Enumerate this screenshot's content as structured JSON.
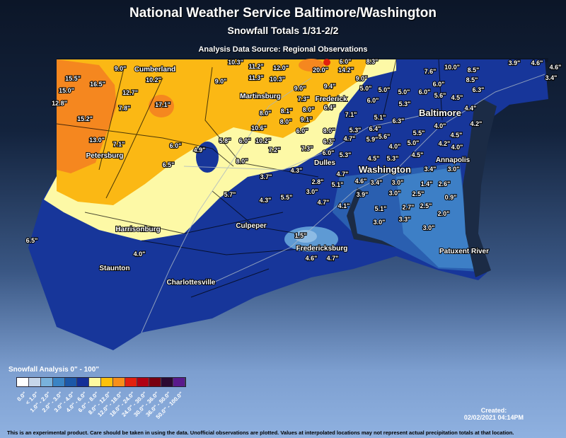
{
  "header": {
    "title": "National Weather Service Baltimore/Washington",
    "subtitle": "Snowfall Totals 1/31-2/2",
    "source": "Analysis Data Source: Regional Observations"
  },
  "colors": {
    "base_blue": "#17369a",
    "yellow": "#fdf9a6",
    "orange": "#fbb814",
    "deep_orange": "#f5871f",
    "light_blue": "#3d7fc6",
    "lightest_blue": "#8dbbe4",
    "water": "#1b2b45"
  },
  "cities": [
    "Cumberland",
    "Petersburg",
    "Martinsburg",
    "Frederick",
    "Baltimore",
    "Dulles",
    "Washington",
    "Annapolis",
    "Harrisonburg",
    "Culpeper",
    "Fredericksburg",
    "Patuxent River",
    "Staunton",
    "Charlottesville"
  ],
  "observations": [
    "9.0\"",
    "15.5\"",
    "16.5\"",
    "15.0\"",
    "12.8\"",
    "12.7\"",
    "10.2\"",
    "7.8\"",
    "17.1\"",
    "15.2\"",
    "13.0\"",
    "7.1\"",
    "6.0\"",
    "4.9\"",
    "5.8\"",
    "6.0\"",
    "10.2\"",
    "8.0\"",
    "6.5\"",
    "7.2\"",
    "10.6\"",
    "8.0\"",
    "3.7\"",
    "10.3\"",
    "11.2\"",
    "12.0\"",
    "11.3\"",
    "10.3\"",
    "9.0\"",
    "9.0\"",
    "7.3\"",
    "8.1\"",
    "8.0\"",
    "8.0\"",
    "9.1\"",
    "6.0\"",
    "8.0\"",
    "6.3\"",
    "7.3\"",
    "6.0\"",
    "4.3\"",
    "2.8\"",
    "20.0\"",
    "14.2\"",
    "6.0\"",
    "8.3\"",
    "9.0\"",
    "9.4\"",
    "5.0\"",
    "5.0\"",
    "5.0\"",
    "6.0\"",
    "7.6\"",
    "10.0\"",
    "8.5\"",
    "8.5\"",
    "6.0\"",
    "3.9\"",
    "4.6\"",
    "4.6\"",
    "3.4\"",
    "6.0\"",
    "6.4\"",
    "5.6\"",
    "4.5\"",
    "6.3\"",
    "5.3\"",
    "7.1\"",
    "5.1\"",
    "4.4\"",
    "6.3\"",
    "4.0\"",
    "4.2\"",
    "5.3\"",
    "6.4\"",
    "5.6\"",
    "5.5\"",
    "4.5\"",
    "4.7\"",
    "5.9\"",
    "5.0\"",
    "4.2\"",
    "4.0\"",
    "4.0\"",
    "5.3\"",
    "4.5\"",
    "5.3\"",
    "4.5\"",
    "3.4\"",
    "3.0\"",
    "4.7\"",
    "5.1\"",
    "4.6\"",
    "3.4\"",
    "3.0\"",
    "1.4\"",
    "2.6\"",
    "3.0\"",
    "3.9\"",
    "3.0\"",
    "2.5\"",
    "0.9\"",
    "5.5\"",
    "4.7\"",
    "4.1\"",
    "5.1\"",
    "2.7\"",
    "2.5\"",
    "2.0\"",
    "3.0\"",
    "3.3\"",
    "3.0\"",
    "1.5\"",
    "4.6\"",
    "4.7\"",
    "5.7\"",
    "4.3\"",
    "6.5\"",
    "4.0\""
  ],
  "legend": {
    "title": "Snowfall Analysis 0\" - 100\"",
    "bins": [
      {
        "label": "0.0\"",
        "color": "#ffffff"
      },
      {
        "label": "< 1.0\"",
        "color": "#c6d6ea"
      },
      {
        "label": "1.0\" - 2.0\"",
        "color": "#79b2dc"
      },
      {
        "label": "2.0\" - 3.0\"",
        "color": "#3a84c4"
      },
      {
        "label": "3.0\" - 4.0\"",
        "color": "#1c58a8"
      },
      {
        "label": "4.0\" - 6.0\"",
        "color": "#142f98"
      },
      {
        "label": "6.0\" - 8.0\"",
        "color": "#fefaa0"
      },
      {
        "label": "8.0\" - 12.0\"",
        "color": "#fcc10c"
      },
      {
        "label": "12.0\" - 18.0\"",
        "color": "#f78f1a"
      },
      {
        "label": "18.0\" - 24.0\"",
        "color": "#e2200e"
      },
      {
        "label": "24.0\" - 30.0\"",
        "color": "#b00012"
      },
      {
        "label": "30.0\" - 36.0\"",
        "color": "#780010"
      },
      {
        "label": "36.0\" - 50.0\"",
        "color": "#2c0a32"
      },
      {
        "label": "50.0\" - 100.0\"",
        "color": "#5a1a8c"
      }
    ]
  },
  "footer": {
    "created_label": "Created:",
    "created_time": "02/02/2021 04:14PM",
    "disclaimer": "This is an experimental product. Care should be taken in using the data. Unofficial observations are plotted. Values at interpolated locations may not represent actual precipitation totals at that location."
  }
}
